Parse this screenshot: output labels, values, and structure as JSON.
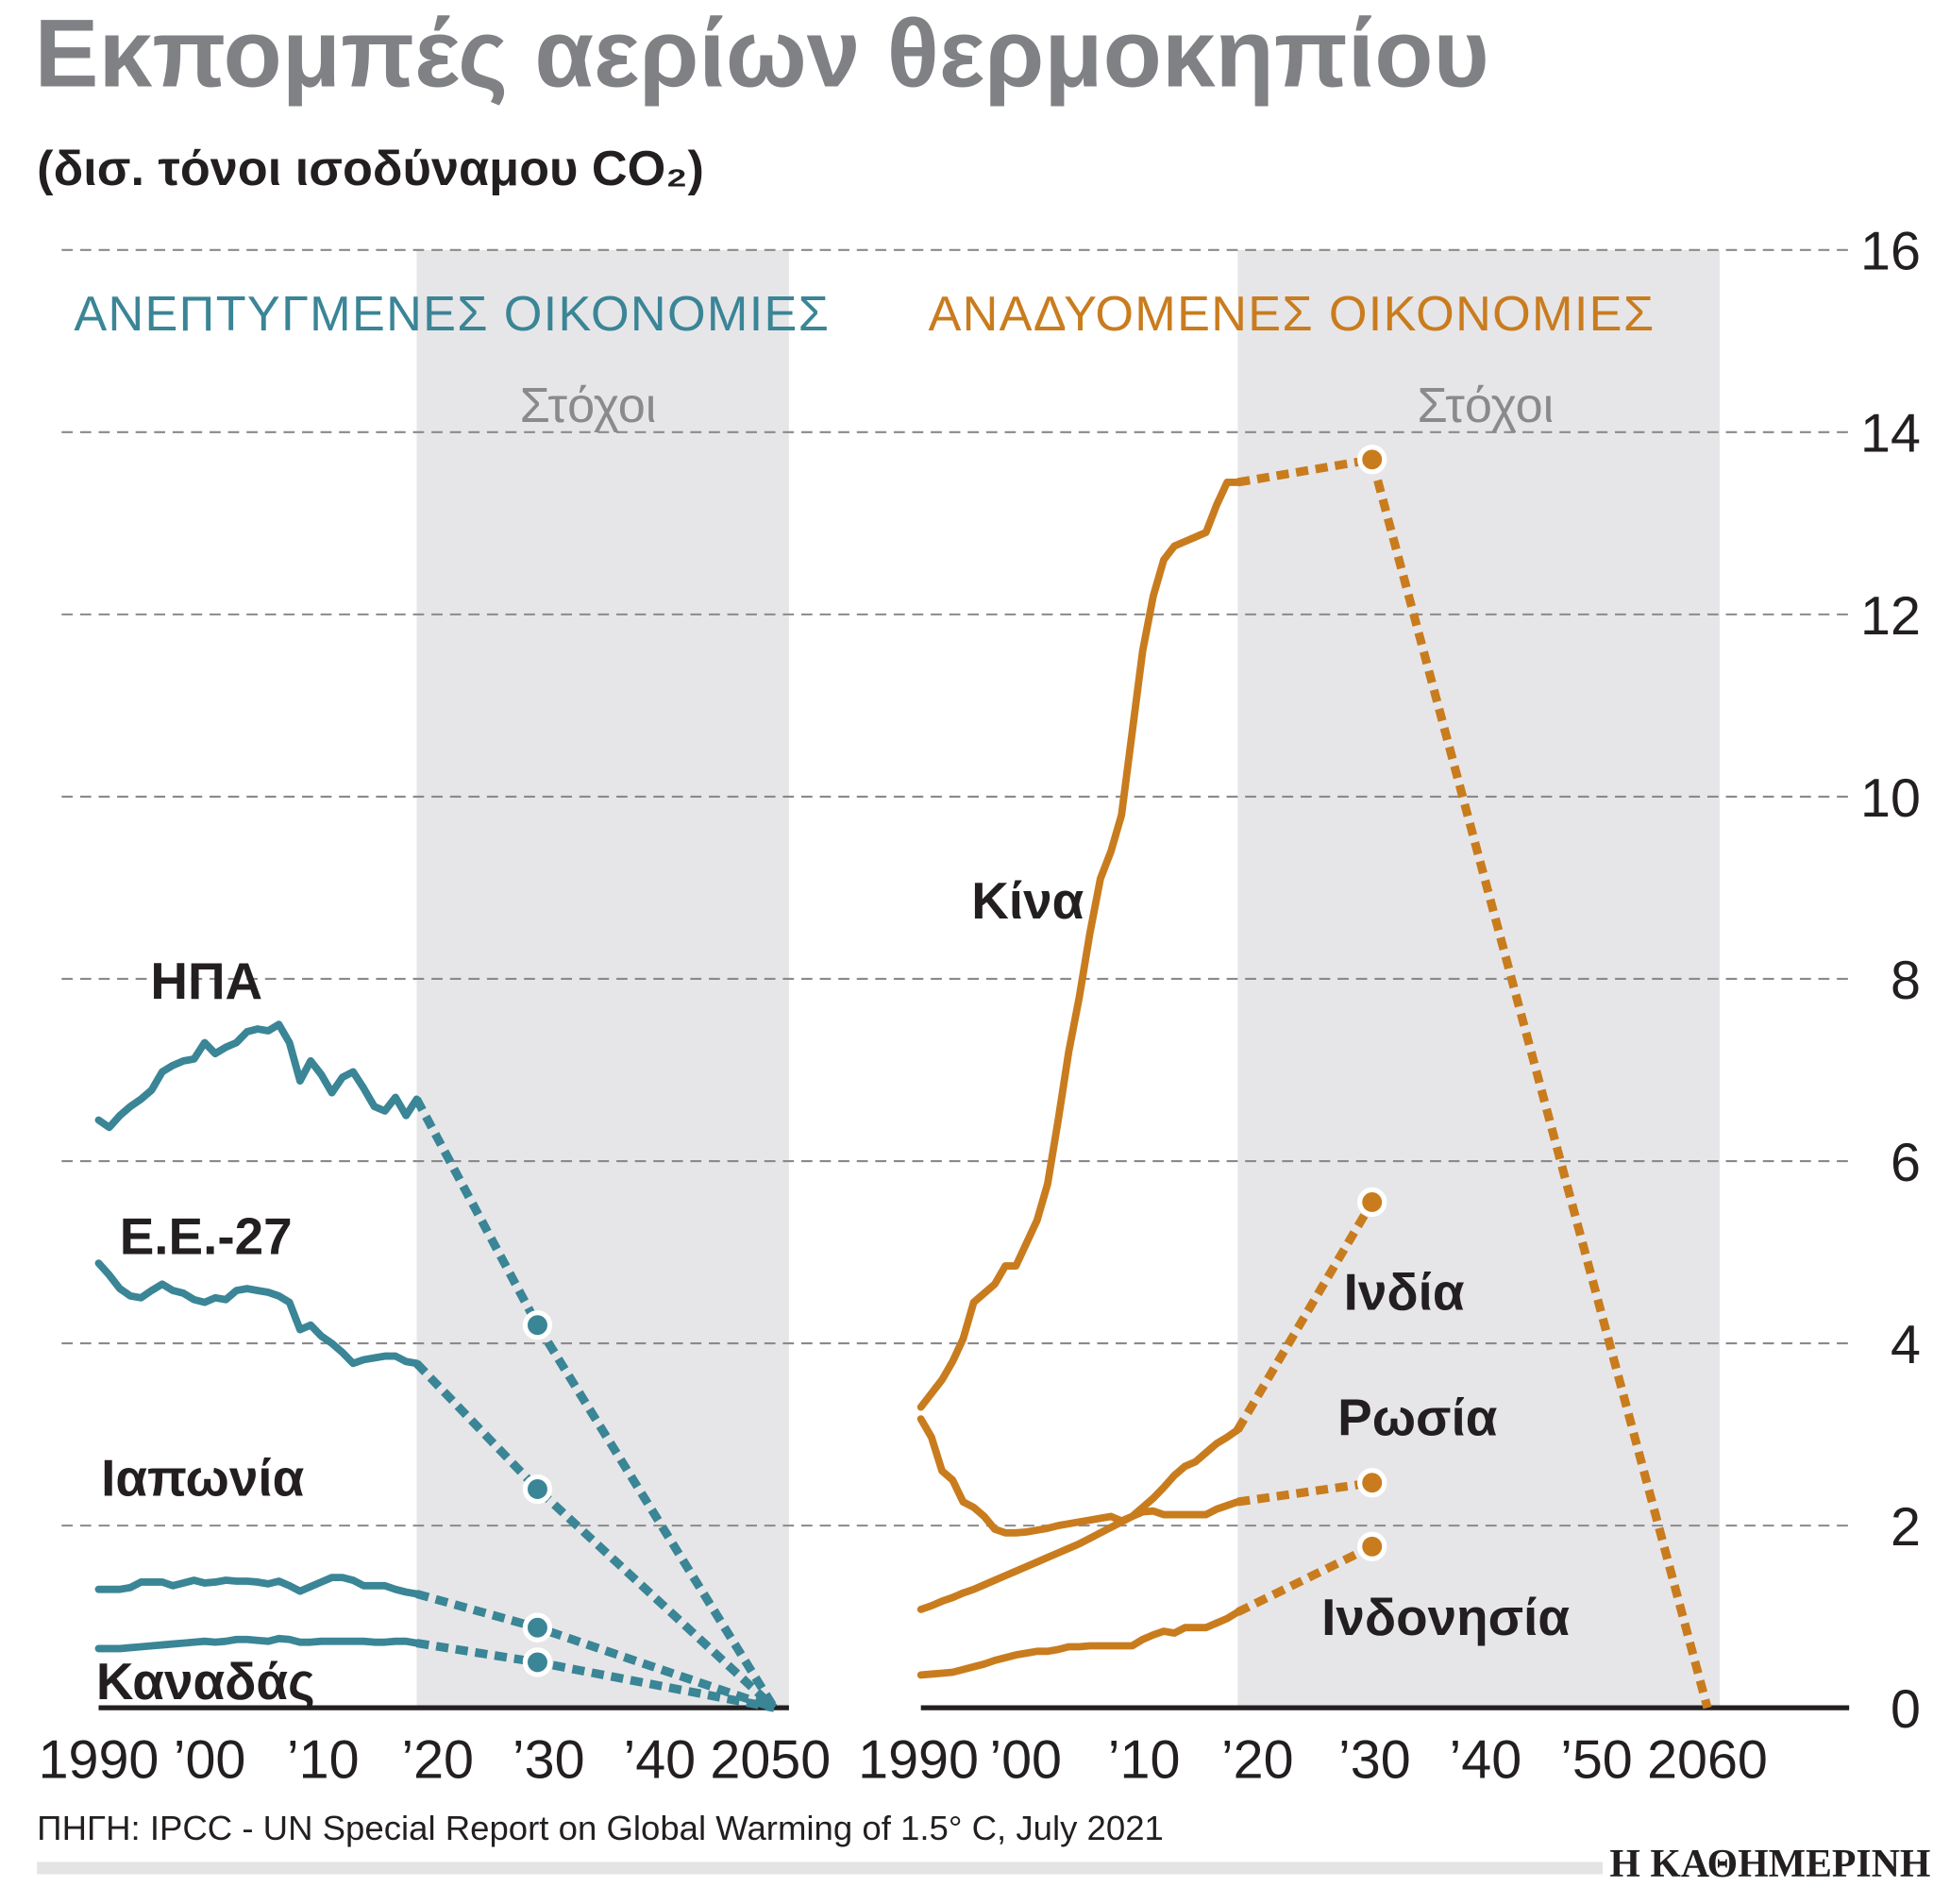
{
  "chart_data": {
    "type": "line",
    "title": "Εκπομπές αερίων θερμοκηπίου",
    "subtitle": "(δισ. τόνοι ισοδύναμου CO₂)",
    "ylim": [
      0,
      16
    ],
    "yticks": [
      "0",
      "2",
      "4",
      "6",
      "8",
      "10",
      "12",
      "14",
      "16"
    ],
    "grid": true,
    "target_label": "Στόχοι",
    "source": "ΠΗΓΗ: IPCC - UN Special Report on Global Warming of 1.5° C, July 2021",
    "publisher": "Η ΚΑΘΗΜΕΡΙΝΗ",
    "panels": [
      {
        "title": "ΑΝΕΠΤΥΓΜΕΝΕΣ ΟΙΚΟΝΟΜΙΕΣ",
        "color": "#3a8596",
        "xlim": [
          1990,
          2050
        ],
        "target_range": [
          2020,
          2050
        ],
        "xticks": [
          "1990",
          "’00",
          "’10",
          "’20",
          "’30",
          "’40",
          "2050"
        ],
        "xtick_years": [
          1990,
          2000,
          2010,
          2020,
          2030,
          2040,
          2050
        ],
        "series": [
          {
            "name": "ΗΠΑ",
            "start": 1990,
            "values": [
              6.45,
              6.37,
              6.5,
              6.6,
              6.68,
              6.78,
              6.98,
              7.05,
              7.1,
              7.12,
              7.3,
              7.18,
              7.25,
              7.3,
              7.42,
              7.45,
              7.43,
              7.5,
              7.3,
              6.88,
              7.1,
              6.95,
              6.75,
              6.92,
              6.98,
              6.8,
              6.6,
              6.55,
              6.7,
              6.5,
              6.68
            ],
            "targets": [
              [
                2030,
                4.2
              ],
              [
                2050,
                0
              ]
            ]
          },
          {
            "name": "Ε.Ε.-27",
            "start": 1990,
            "values": [
              4.88,
              4.75,
              4.6,
              4.52,
              4.5,
              4.58,
              4.65,
              4.58,
              4.55,
              4.48,
              4.45,
              4.5,
              4.48,
              4.58,
              4.6,
              4.58,
              4.56,
              4.52,
              4.45,
              4.15,
              4.2,
              4.08,
              4.0,
              3.9,
              3.78,
              3.82,
              3.84,
              3.86,
              3.86,
              3.8,
              3.78
            ],
            "targets": [
              [
                2030,
                2.4
              ],
              [
                2050,
                0
              ]
            ]
          },
          {
            "name": "Ιαπωνία",
            "start": 1990,
            "values": [
              1.3,
              1.3,
              1.3,
              1.32,
              1.38,
              1.38,
              1.38,
              1.34,
              1.37,
              1.4,
              1.37,
              1.38,
              1.4,
              1.39,
              1.39,
              1.38,
              1.36,
              1.39,
              1.34,
              1.28,
              1.33,
              1.38,
              1.43,
              1.43,
              1.4,
              1.34,
              1.34,
              1.34,
              1.3,
              1.27,
              1.25
            ],
            "targets": [
              [
                2030,
                0.88
              ],
              [
                2050,
                0
              ]
            ]
          },
          {
            "name": "Καναδάς",
            "start": 1990,
            "values": [
              0.65,
              0.65,
              0.65,
              0.66,
              0.67,
              0.68,
              0.69,
              0.7,
              0.71,
              0.72,
              0.73,
              0.72,
              0.73,
              0.75,
              0.75,
              0.74,
              0.73,
              0.76,
              0.75,
              0.72,
              0.72,
              0.73,
              0.73,
              0.73,
              0.73,
              0.73,
              0.72,
              0.72,
              0.73,
              0.73,
              0.71
            ],
            "targets": [
              [
                2030,
                0.5
              ],
              [
                2050,
                0
              ]
            ]
          }
        ]
      },
      {
        "title": "ΑΝΑΔΥΟΜΕΝΕΣ ΟΙΚΟΝΟΜΙΕΣ",
        "color": "#c97c1e",
        "xlim": [
          1990,
          2060
        ],
        "target_range": [
          2020,
          2060
        ],
        "xticks": [
          "1990",
          "’00",
          "’10",
          "’20",
          "’30",
          "’40",
          "’50",
          "2060"
        ],
        "xtick_years": [
          1990,
          2000,
          2010,
          2020,
          2030,
          2040,
          2050,
          2060
        ],
        "series": [
          {
            "name": "Κίνα",
            "start": 1990,
            "values": [
              3.3,
              3.45,
              3.6,
              3.8,
              4.05,
              4.45,
              4.55,
              4.65,
              4.85,
              4.85,
              5.1,
              5.35,
              5.75,
              6.45,
              7.2,
              7.8,
              8.5,
              9.1,
              9.4,
              9.8,
              10.7,
              11.6,
              12.2,
              12.6,
              12.75,
              12.8,
              12.85,
              12.9,
              13.2,
              13.45,
              13.45
            ],
            "targets": [
              [
                2030,
                13.7
              ],
              [
                2060,
                0
              ]
            ]
          },
          {
            "name": "Ινδία",
            "start": 1990,
            "values": [
              1.08,
              1.12,
              1.17,
              1.21,
              1.26,
              1.3,
              1.35,
              1.4,
              1.45,
              1.5,
              1.55,
              1.6,
              1.65,
              1.7,
              1.75,
              1.8,
              1.86,
              1.92,
              1.98,
              2.04,
              2.1,
              2.2,
              2.3,
              2.42,
              2.55,
              2.65,
              2.7,
              2.8,
              2.9,
              2.97,
              3.05
            ],
            "targets": [
              [
                2030,
                5.55
              ]
            ]
          },
          {
            "name": "Ρωσία",
            "start": 1990,
            "values": [
              3.17,
              2.97,
              2.6,
              2.5,
              2.26,
              2.2,
              2.1,
              1.96,
              1.92,
              1.92,
              1.93,
              1.95,
              1.97,
              2.0,
              2.02,
              2.04,
              2.06,
              2.08,
              2.1,
              2.05,
              2.1,
              2.15,
              2.16,
              2.12,
              2.12,
              2.12,
              2.12,
              2.12,
              2.18,
              2.22,
              2.26
            ],
            "targets": [
              [
                2030,
                2.47
              ]
            ]
          },
          {
            "name": "Ινδονησία",
            "start": 1990,
            "values": [
              0.36,
              0.37,
              0.38,
              0.39,
              0.42,
              0.45,
              0.48,
              0.52,
              0.55,
              0.58,
              0.6,
              0.62,
              0.62,
              0.64,
              0.67,
              0.67,
              0.68,
              0.68,
              0.68,
              0.68,
              0.68,
              0.75,
              0.8,
              0.84,
              0.82,
              0.88,
              0.88,
              0.88,
              0.93,
              0.98,
              1.05
            ],
            "targets": [
              [
                2030,
                1.77
              ]
            ]
          }
        ]
      }
    ]
  }
}
